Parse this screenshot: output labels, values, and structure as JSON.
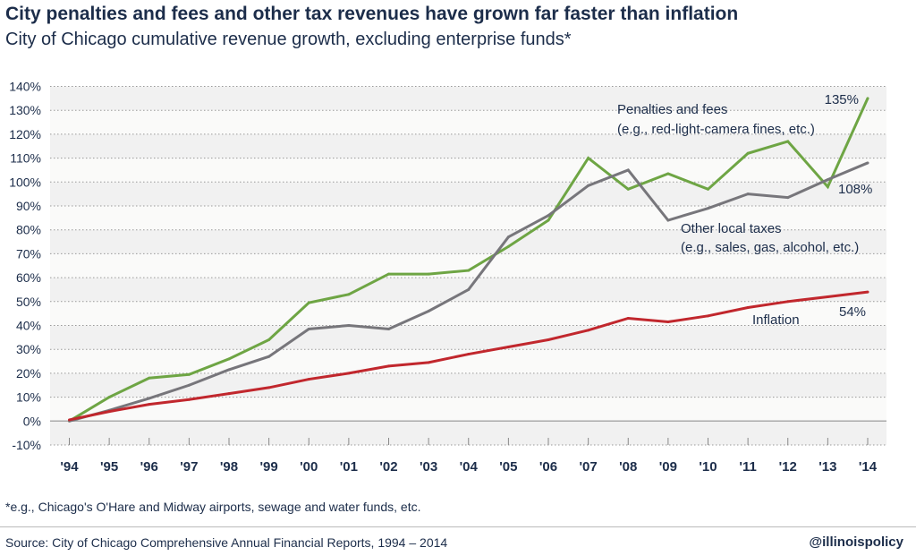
{
  "title": "City penalties and fees and other tax revenues have grown far faster than inflation",
  "subtitle": "City of Chicago cumulative revenue growth, excluding enterprise funds*",
  "footnote": "*e.g., Chicago's O'Hare and Midway airports, sewage and water funds, etc.",
  "source": "Source: City of Chicago Comprehensive Annual Financial Reports, 1994 – 2014",
  "handle": "@illinoispolicy",
  "chart_data": {
    "type": "line",
    "categories": [
      "'94",
      "'95",
      "'96",
      "'97",
      "'98",
      "'99",
      "'00",
      "'01",
      "'02",
      "'03",
      "'04",
      "'05",
      "'06",
      "'07",
      "'08",
      "'09",
      "'10",
      "'11",
      "'12",
      "'13",
      "'14"
    ],
    "ylim": [
      -10,
      140
    ],
    "yticks": [
      "-10%",
      "0%",
      "10%",
      "20%",
      "30%",
      "40%",
      "50%",
      "60%",
      "70%",
      "80%",
      "90%",
      "100%",
      "110%",
      "120%",
      "130%",
      "140%"
    ],
    "grid": true,
    "series": [
      {
        "name": "Penalties and fees",
        "name2": "(e.g., red-light-camera fines, etc.)",
        "color": "#6ea544",
        "end_label": "135%",
        "values": [
          0,
          10,
          18,
          19.5,
          26,
          34,
          49.5,
          53,
          61.5,
          61.5,
          63,
          73,
          84,
          110,
          97,
          103.5,
          97,
          112,
          117,
          98,
          135
        ]
      },
      {
        "name": "Other local taxes",
        "name2": "(e.g., sales, gas, alcohol, etc.)",
        "color": "#77767b",
        "end_label": "108%",
        "values": [
          0,
          4.5,
          9.5,
          15,
          21.5,
          27,
          38.5,
          40,
          38.5,
          46,
          55,
          77,
          86,
          98.5,
          105,
          84,
          89,
          95,
          93.5,
          101,
          108
        ]
      },
      {
        "name": "Inflation",
        "color": "#c1272d",
        "end_label": "54%",
        "values": [
          0.5,
          4,
          7,
          9,
          11.5,
          14,
          17.5,
          20,
          23,
          24.5,
          28,
          31,
          34,
          38,
          43,
          41.5,
          44,
          47.5,
          50,
          52,
          54
        ]
      }
    ]
  }
}
